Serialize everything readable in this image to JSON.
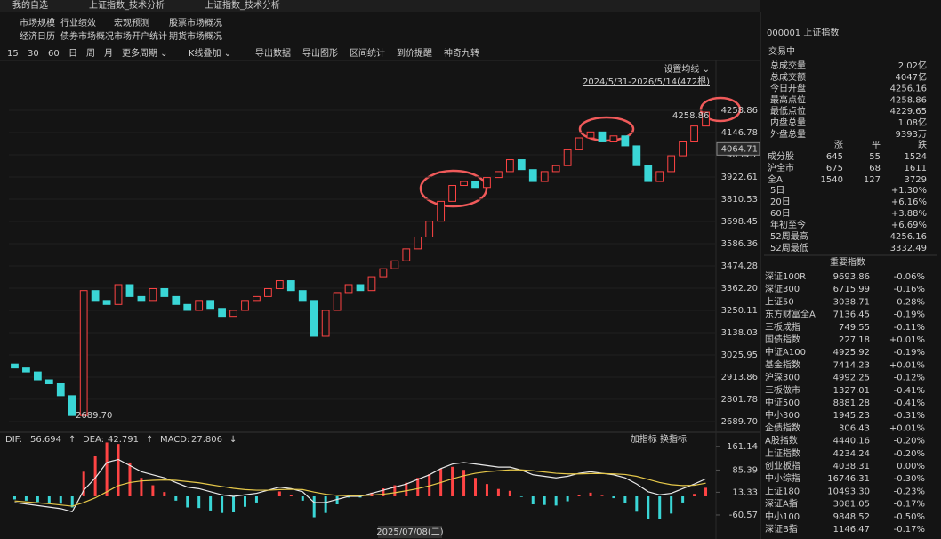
{
  "tabs": [
    "我的自选",
    "上证指数_技术分析",
    "上证指数_技术分析"
  ],
  "menu": [
    [
      "市场规模",
      "行业绩效",
      "宏观预测",
      "股票市场概况"
    ],
    [
      "经济日历",
      "债券市场概况",
      "市场开户统计",
      "期货市场概况"
    ]
  ],
  "toolbar": [
    "15",
    "30",
    "60",
    "日",
    "周",
    "月",
    "更多周期 ⌄",
    "K线叠加 ⌄",
    "导出数据",
    "导出图形",
    "区间统计",
    "到价提醒",
    "神奇九转"
  ],
  "chart_data": [
    {
      "type": "candlestick",
      "ma_setting": "设置均线 ⌄",
      "range_label": "2024/5/31-2026/5/14(472根)",
      "high_label": "4258.86",
      "low_label": "2689.70",
      "last_price": 4064.71,
      "date_label": "2025/07/08(二)",
      "up_color": "#ff4444",
      "down_color": "#3ad6d6",
      "grid": true,
      "ylim": [
        2640,
        4434
      ],
      "yticks": [
        4258.86,
        4146.78,
        4034.7,
        3922.61,
        3810.53,
        3698.45,
        3586.36,
        3474.28,
        {
          "value": 3362.2,
          "label": "3362.20"
        },
        3250.11,
        3138.03,
        3025.95,
        2913.86,
        2801.78,
        {
          "value": 2689.7,
          "label": "2689.70"
        }
      ],
      "opens": [
        2980,
        2960,
        2940,
        2900,
        2880,
        2820,
        2720,
        3350,
        3300,
        3280,
        3380,
        3320,
        3300,
        3360,
        3320,
        3280,
        3250,
        3300,
        3260,
        3220,
        3250,
        3300,
        3320,
        3360,
        3400,
        3350,
        3300,
        3120,
        3250,
        3340,
        3380,
        3350,
        3420,
        3460,
        3500,
        3560,
        3620,
        3700,
        3800,
        3880,
        3900,
        3870,
        3920,
        3950,
        4010,
        3960,
        3900,
        3950,
        3980,
        4060,
        4120,
        4150,
        4100,
        4130,
        4080,
        3980,
        3900,
        3950,
        4030,
        4100,
        4180
      ],
      "closes": [
        2960,
        2940,
        2900,
        2880,
        2820,
        2720,
        3350,
        3300,
        3280,
        3380,
        3320,
        3300,
        3360,
        3320,
        3280,
        3250,
        3300,
        3260,
        3220,
        3250,
        3300,
        3320,
        3360,
        3400,
        3350,
        3300,
        3120,
        3250,
        3340,
        3380,
        3350,
        3420,
        3460,
        3500,
        3560,
        3620,
        3700,
        3800,
        3880,
        3900,
        3870,
        3920,
        3950,
        4010,
        3960,
        3900,
        3950,
        3980,
        4060,
        4120,
        4150,
        4100,
        4130,
        4080,
        3980,
        3900,
        3950,
        4030,
        4100,
        4180,
        4250
      ]
    },
    {
      "type": "macd",
      "tools": "加指标 换指标",
      "ylim": [
        -78,
        182
      ],
      "yticks": [
        161.14,
        85.39,
        13.33,
        -60.57
      ],
      "series": [
        {
          "name": "DIF:",
          "trend": "↑",
          "color": "#e8e8e8",
          "values": [
            -20,
            -25,
            -30,
            -35,
            -40,
            -50,
            20,
            60,
            110,
            120,
            100,
            80,
            70,
            60,
            45,
            30,
            25,
            15,
            5,
            0,
            5,
            10,
            20,
            30,
            25,
            15,
            -20,
            -20,
            -10,
            0,
            0,
            10,
            20,
            30,
            40,
            55,
            70,
            90,
            105,
            110,
            105,
            100,
            95,
            95,
            85,
            70,
            65,
            60,
            65,
            75,
            80,
            75,
            70,
            60,
            40,
            15,
            5,
            10,
            25,
            40,
            56.694
          ]
        },
        {
          "name": "DEA:",
          "trend": "↑",
          "color": "#e6c84a",
          "values": [
            -15,
            -18,
            -21,
            -24,
            -28,
            -32,
            -20,
            -5,
            15,
            35,
            45,
            50,
            52,
            53,
            52,
            48,
            44,
            38,
            32,
            26,
            22,
            20,
            20,
            22,
            23,
            22,
            14,
            7,
            3,
            2,
            2,
            4,
            7,
            12,
            18,
            25,
            34,
            45,
            57,
            67,
            75,
            80,
            83,
            86,
            86,
            83,
            79,
            75,
            73,
            73,
            74,
            74,
            73,
            71,
            65,
            55,
            45,
            38,
            35,
            36,
            42.791
          ]
        },
        {
          "name": "MACD:",
          "trend": "↓",
          "color": "#c070ff",
          "values": [
            -10,
            -14,
            -18,
            -22,
            -24,
            -36,
            80,
            130,
            175,
            170,
            110,
            60,
            36,
            14,
            -14,
            -36,
            -38,
            -46,
            -54,
            -52,
            -34,
            -20,
            0,
            16,
            4,
            -14,
            -68,
            -54,
            -26,
            -4,
            -4,
            12,
            26,
            36,
            44,
            60,
            72,
            90,
            96,
            86,
            60,
            40,
            24,
            18,
            -2,
            -26,
            -28,
            -30,
            -16,
            4,
            12,
            2,
            -6,
            -22,
            -50,
            -75,
            -75,
            -56,
            -20,
            8,
            27.806
          ]
        }
      ]
    }
  ],
  "quote": {
    "title": "000001 上证指数",
    "status": "交易中",
    "stats": [
      {
        "label": "总成交量",
        "value": "2.02亿",
        "color": "#e8e8e8"
      },
      {
        "label": "总成交额",
        "value": "4047亿",
        "color": "#4a9cff"
      },
      {
        "label": "今日开盘",
        "value": "4256.16",
        "color": "#ff4d4d"
      },
      {
        "label": "最高点位",
        "value": "4258.86",
        "color": "#ff4d4d"
      },
      {
        "label": "最低点位",
        "value": "4229.65",
        "color": "#33c060"
      },
      {
        "label": "内盘总量",
        "value": "1.08亿",
        "color": "#33c060"
      },
      {
        "label": "外盘总量",
        "value": "9393万",
        "color": "#ff4d4d"
      }
    ],
    "breadth_header": [
      "涨",
      "平",
      "跌"
    ],
    "breadth": [
      [
        "成分股",
        "645",
        "55",
        "1524"
      ],
      [
        "沪全市",
        "675",
        "68",
        "1611"
      ],
      [
        "全A",
        "1540",
        "127",
        "3729"
      ]
    ],
    "returns": [
      {
        "label": "5日",
        "value": "+1.30%",
        "color": "#ff4d4d"
      },
      {
        "label": "20日",
        "value": "+6.16%",
        "color": "#ff4d4d"
      },
      {
        "label": "60日",
        "value": "+3.88%",
        "color": "#ff4d4d"
      },
      {
        "label": "年初至今",
        "value": "+6.69%",
        "color": "#ff4d4d"
      },
      {
        "label": "52周最高",
        "value": "4256.16",
        "color": "#ff4d4d"
      },
      {
        "label": "52周最低",
        "value": "3332.49",
        "color": "#33c060"
      }
    ],
    "index_title": "重要指数",
    "indices": [
      [
        "深证100R",
        "9693.86",
        "-0.06%"
      ],
      [
        "深证300",
        "6715.99",
        "-0.16%"
      ],
      [
        "上证50",
        "3038.71",
        "-0.28%"
      ],
      [
        "东方财富全A",
        "7136.45",
        "-0.19%"
      ],
      [
        "三板成指",
        "749.55",
        "-0.11%"
      ],
      [
        "国债指数",
        "227.18",
        "+0.01%"
      ],
      [
        "中证A100",
        "4925.92",
        "-0.19%"
      ],
      [
        "基金指数",
        "7414.23",
        "+0.01%"
      ],
      [
        "沪深300",
        "4992.25",
        "-0.12%"
      ],
      [
        "三板做市",
        "1327.01",
        "-0.41%"
      ],
      [
        "中证500",
        "8881.28",
        "-0.41%"
      ],
      [
        "中小300",
        "1945.23",
        "-0.31%"
      ],
      [
        "企债指数",
        "306.43",
        "+0.01%"
      ],
      [
        "A股指数",
        "4440.16",
        "-0.20%"
      ],
      [
        "上证指数",
        "4234.24",
        "-0.20%"
      ],
      [
        "创业板指",
        "4038.31",
        "0.00%"
      ],
      [
        "中小综指",
        "16746.31",
        "-0.30%"
      ],
      [
        "上证180",
        "10493.30",
        "-0.23%"
      ],
      [
        "深证A指",
        "3081.05",
        "-0.17%"
      ],
      [
        "中小100",
        "9848.52",
        "-0.50%"
      ],
      [
        "深证B指",
        "1146.47",
        "-0.17%"
      ]
    ]
  }
}
